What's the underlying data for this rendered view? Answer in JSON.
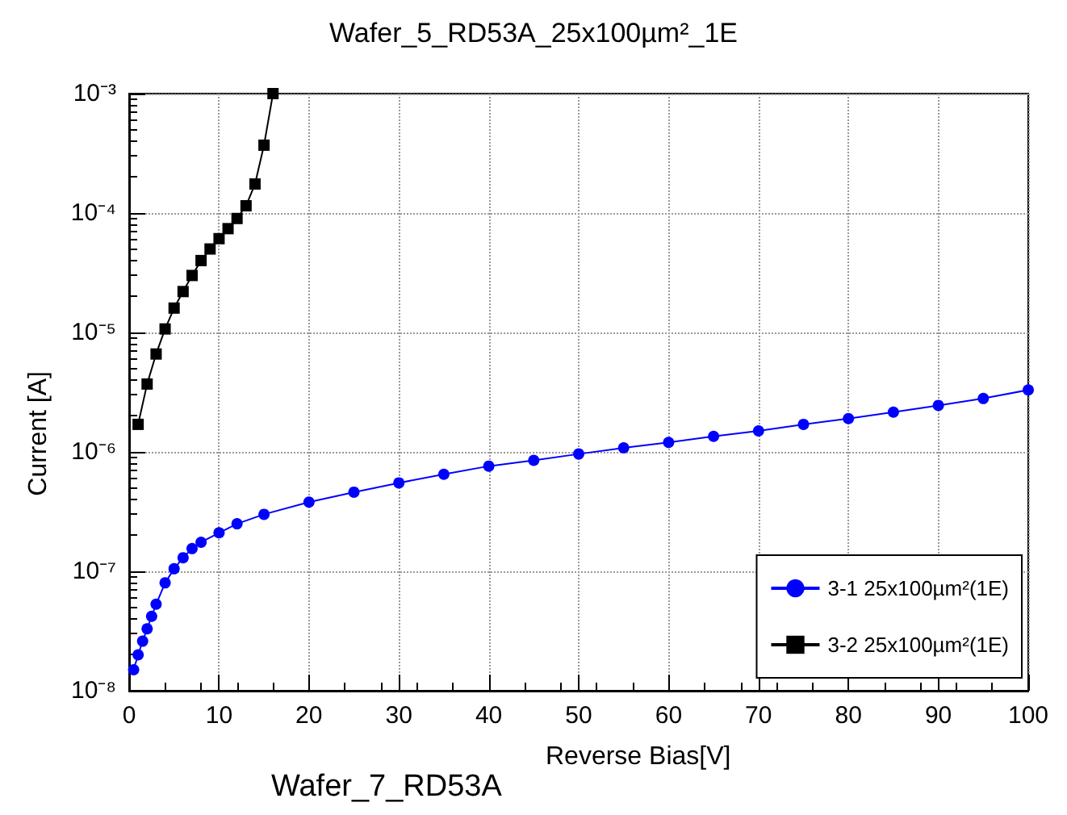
{
  "chart_data": {
    "type": "line",
    "title": "Wafer_5_RD53A_25x100µm²_1E",
    "xlabel": "Reverse Bias[V]",
    "ylabel": "Current [A]",
    "annotations": [
      "Wafer_7_RD53A"
    ],
    "log": "y",
    "grid": true,
    "legend": "bottom right",
    "line_style": "solid",
    "xlim": [
      0,
      100
    ],
    "xticks": [
      0,
      10,
      20,
      30,
      40,
      50,
      60,
      70,
      80,
      90,
      100
    ],
    "ylim": [
      1e-08,
      0.001
    ],
    "yticks": [
      {
        "value": 1e-08,
        "label": "10⁻⁸"
      },
      {
        "value": 1e-07,
        "label": "10⁻⁷"
      },
      {
        "value": 1e-06,
        "label": "10⁻⁶"
      },
      {
        "value": 1e-05,
        "label": "10⁻⁵"
      },
      {
        "value": 0.0001,
        "label": "10⁻⁴"
      },
      {
        "value": 0.001,
        "label": "10⁻³"
      }
    ],
    "series": [
      {
        "name": "3-1 25x100µm²(1E)",
        "color": "#0000ff",
        "marker": "circle",
        "x": [
          0.5,
          1,
          1.5,
          2,
          2.5,
          3,
          4,
          5,
          6,
          7,
          8,
          10,
          12,
          15,
          20,
          25,
          30,
          35,
          40,
          45,
          50,
          55,
          60,
          65,
          70,
          75,
          80,
          85,
          90,
          95,
          100
        ],
        "values": [
          1.5e-08,
          2e-08,
          2.6e-08,
          3.3e-08,
          4.2e-08,
          5.3e-08,
          8e-08,
          1.05e-07,
          1.3e-07,
          1.55e-07,
          1.75e-07,
          2.1e-07,
          2.5e-07,
          3e-07,
          3.8e-07,
          4.6e-07,
          5.5e-07,
          6.5e-07,
          7.6e-07,
          8.5e-07,
          9.6e-07,
          1.08e-06,
          1.2e-06,
          1.35e-06,
          1.5e-06,
          1.7e-06,
          1.9e-06,
          2.15e-06,
          2.45e-06,
          2.8e-06,
          3.3e-06
        ]
      },
      {
        "name": "3-2 25x100µm²(1E)",
        "color": "#000000",
        "marker": "square",
        "x": [
          1,
          2,
          3,
          4,
          5,
          6,
          7,
          8,
          9,
          10,
          11,
          12,
          13,
          14,
          15,
          16
        ],
        "values": [
          1.7e-06,
          3.7e-06,
          6.6e-06,
          1.07e-05,
          1.6e-05,
          2.2e-05,
          3e-05,
          4e-05,
          5e-05,
          6.1e-05,
          7.4e-05,
          9e-05,
          0.000115,
          0.000175,
          0.00037,
          0.001
        ]
      }
    ]
  }
}
